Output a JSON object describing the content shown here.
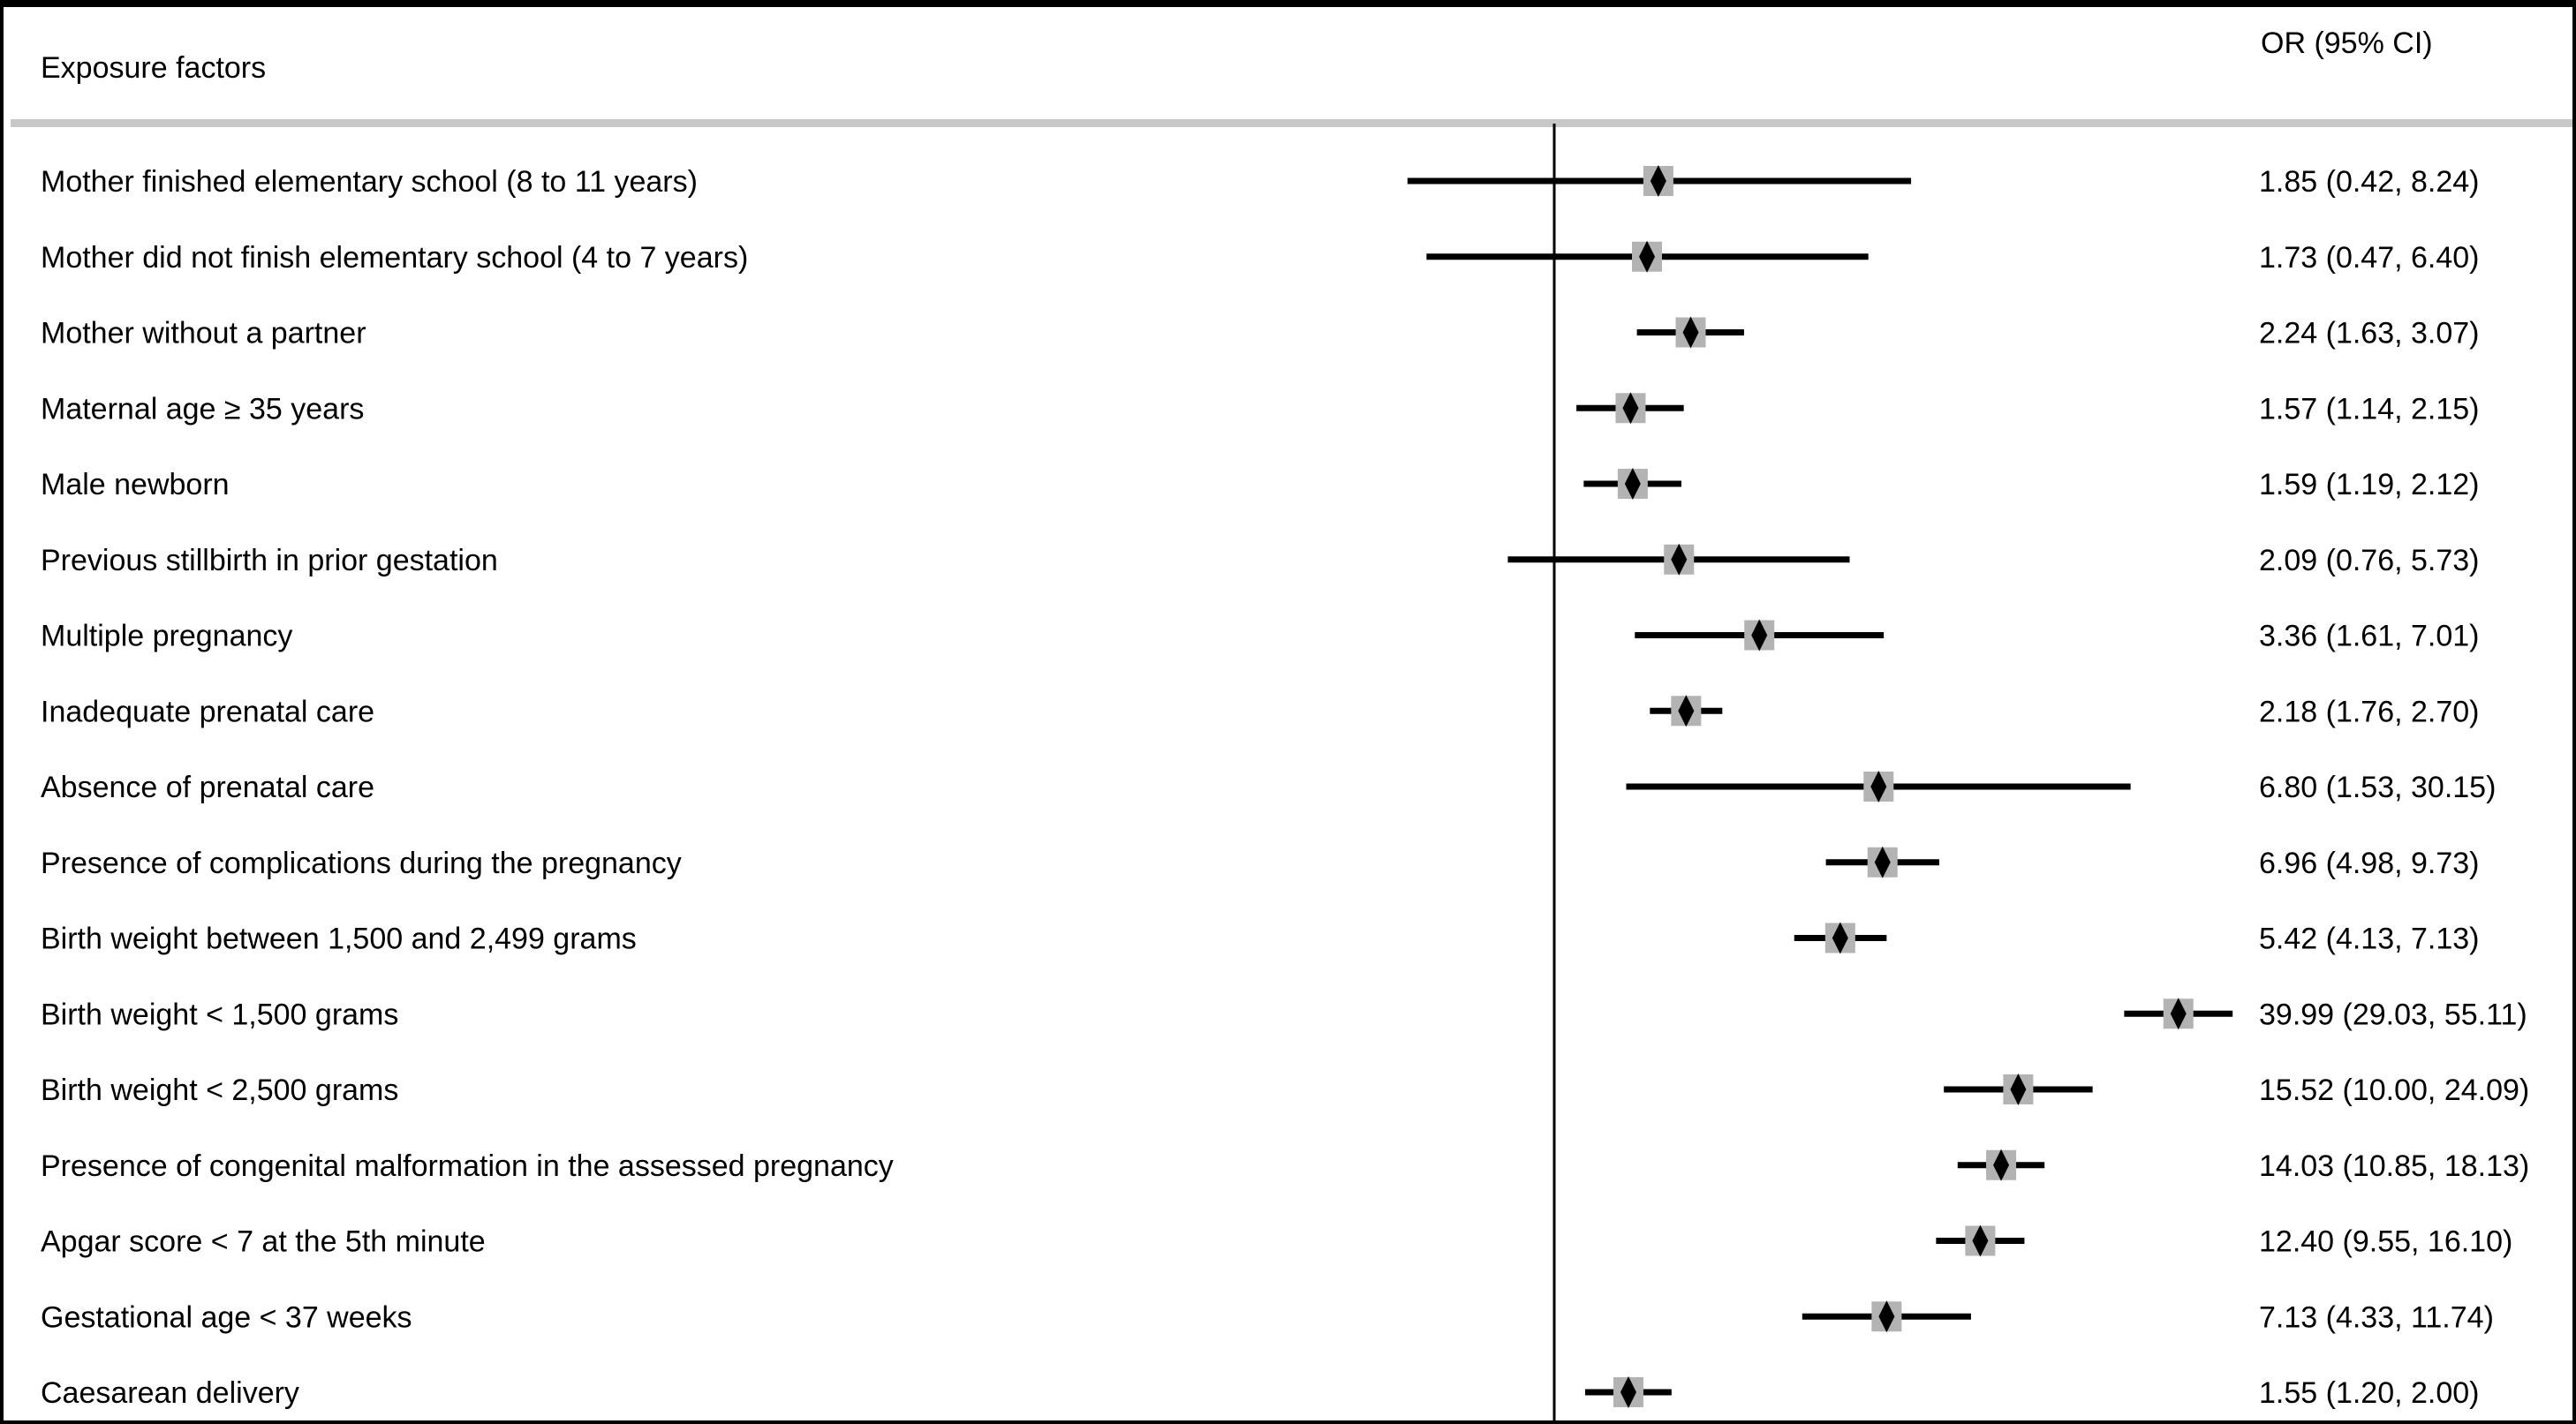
{
  "chart_data": {
    "type": "forest",
    "x_scale": "log",
    "reference_value": 1,
    "xlim": [
      0.35,
      60
    ],
    "grid": false,
    "header": {
      "label_column": "Exposure factors",
      "value_column": "OR (95% CI)"
    },
    "colors": {
      "line": "#000000",
      "marker": "#000000",
      "weight_box": "#b3b3b3",
      "header_rule": "#c8c8c8"
    },
    "rows": [
      {
        "label": "Mother finished elementary school (8 to 11 years)",
        "or": 1.85,
        "lo": 0.42,
        "hi": 8.24,
        "text": "1.85 (0.42, 8.24)"
      },
      {
        "label": "Mother did not finish elementary school (4 to 7 years)",
        "or": 1.73,
        "lo": 0.47,
        "hi": 6.4,
        "text": "1.73 (0.47, 6.40)"
      },
      {
        "label": "Mother without a partner",
        "or": 2.24,
        "lo": 1.63,
        "hi": 3.07,
        "text": "2.24 (1.63, 3.07)"
      },
      {
        "label": "Maternal age ≥ 35 years",
        "or": 1.57,
        "lo": 1.14,
        "hi": 2.15,
        "text": "1.57 (1.14, 2.15)"
      },
      {
        "label": "Male newborn",
        "or": 1.59,
        "lo": 1.19,
        "hi": 2.12,
        "text": "1.59 (1.19, 2.12)"
      },
      {
        "label": "Previous stillbirth in prior gestation",
        "or": 2.09,
        "lo": 0.76,
        "hi": 5.73,
        "text": "2.09 (0.76, 5.73)"
      },
      {
        "label": "Multiple pregnancy",
        "or": 3.36,
        "lo": 1.61,
        "hi": 7.01,
        "text": "3.36 (1.61, 7.01)"
      },
      {
        "label": "Inadequate prenatal care",
        "or": 2.18,
        "lo": 1.76,
        "hi": 2.7,
        "text": "2.18 (1.76, 2.70)"
      },
      {
        "label": "Absence of prenatal care",
        "or": 6.8,
        "lo": 1.53,
        "hi": 30.15,
        "text": "6.80 (1.53, 30.15)"
      },
      {
        "label": "Presence of complications during the pregnancy",
        "or": 6.96,
        "lo": 4.98,
        "hi": 9.73,
        "text": "6.96 (4.98, 9.73)"
      },
      {
        "label": "Birth weight between 1,500 and 2,499 grams",
        "or": 5.42,
        "lo": 4.13,
        "hi": 7.13,
        "text": "5.42 (4.13, 7.13)"
      },
      {
        "label": "Birth weight < 1,500 grams",
        "or": 39.99,
        "lo": 29.03,
        "hi": 55.11,
        "text": "39.99 (29.03, 55.11)"
      },
      {
        "label": "Birth weight < 2,500 grams",
        "or": 15.52,
        "lo": 10.0,
        "hi": 24.09,
        "text": "15.52 (10.00, 24.09)"
      },
      {
        "label": "Presence of congenital malformation in the assessed pregnancy",
        "or": 14.03,
        "lo": 10.85,
        "hi": 18.13,
        "text": "14.03 (10.85, 18.13)"
      },
      {
        "label": "Apgar score < 7 at the 5th minute",
        "or": 12.4,
        "lo": 9.55,
        "hi": 16.1,
        "text": "12.40 (9.55, 16.10)"
      },
      {
        "label": "Gestational age < 37 weeks",
        "or": 7.13,
        "lo": 4.33,
        "hi": 11.74,
        "text": "7.13 (4.33, 11.74)"
      },
      {
        "label": "Caesarean delivery",
        "or": 1.55,
        "lo": 1.2,
        "hi": 2.0,
        "text": "1.55 (1.20, 2.00)"
      }
    ]
  }
}
